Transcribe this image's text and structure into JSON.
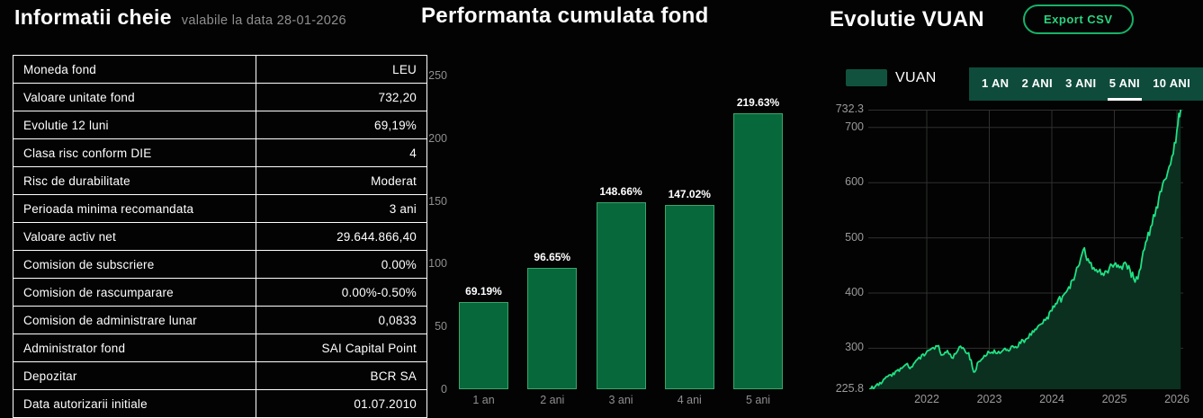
{
  "key_info": {
    "title": "Informatii cheie",
    "subtitle": "valabile la data 28-01-2026",
    "rows": [
      {
        "label": "Moneda fond",
        "value": "LEU"
      },
      {
        "label": "Valoare unitate fond",
        "value": "732,20"
      },
      {
        "label": "Evolutie 12 luni",
        "value": "69,19%"
      },
      {
        "label": "Clasa risc conform DIE",
        "value": "4"
      },
      {
        "label": "Risc de durabilitate",
        "value": "Moderat"
      },
      {
        "label": "Perioada minima recomandata",
        "value": "3 ani"
      },
      {
        "label": "Valoare activ net",
        "value": "29.644.866,40"
      },
      {
        "label": "Comision de subscriere",
        "value": "0.00%"
      },
      {
        "label": "Comision de rascumparare",
        "value": "0.00%-0.50%"
      },
      {
        "label": "Comision de administrare lunar",
        "value": "0,0833"
      },
      {
        "label": "Administrator fond",
        "value": "SAI Capital Point"
      },
      {
        "label": "Depozitar",
        "value": "BCR SA"
      },
      {
        "label": "Data autorizarii initiale",
        "value": "01.07.2010"
      }
    ]
  },
  "chart_data": [
    {
      "type": "bar",
      "title": "Performanta cumulata fond",
      "categories": [
        "1 an",
        "2 ani",
        "3 ani",
        "4 ani",
        "5 ani"
      ],
      "values": [
        69.19,
        96.65,
        148.66,
        147.02,
        219.63
      ],
      "value_labels": [
        "69.19%",
        "96.65%",
        "148.66%",
        "147.02%",
        "219.63%"
      ],
      "ylim": [
        0,
        250
      ],
      "yticks": [
        0,
        50,
        100,
        150,
        200,
        250
      ],
      "bar_color": "#07693b",
      "bar_border": "#3ba46c",
      "grid": false,
      "legend": "none"
    },
    {
      "type": "area",
      "title": "Evolutie VUAN",
      "export_label": "Export CSV",
      "legend": [
        {
          "label": "VUAN",
          "color": "#11523e"
        }
      ],
      "range_tabs": [
        {
          "label": "1 AN",
          "active": false
        },
        {
          "label": "2 ANI",
          "active": false
        },
        {
          "label": "3 ANI",
          "active": false
        },
        {
          "label": "5 ANI",
          "active": true
        },
        {
          "label": "10 ANI",
          "active": false
        }
      ],
      "ylim": [
        225.8,
        732.3
      ],
      "yticks": [
        732.3,
        700,
        600,
        500,
        400,
        300,
        225.8
      ],
      "grid_y": [
        732.3,
        700,
        600,
        500,
        400,
        300
      ],
      "xticks": [
        2022,
        2023,
        2024,
        2025,
        2026
      ],
      "xlim": [
        2021.065,
        2026.1
      ],
      "line_color": "#20e184",
      "fill_color": "#0b3020",
      "grid_color": "rgba(255,255,255,0.18)",
      "series": [
        {
          "name": "VUAN",
          "points": [
            [
              2021.08,
              226
            ],
            [
              2021.17,
              230
            ],
            [
              2021.25,
              238
            ],
            [
              2021.33,
              245
            ],
            [
              2021.42,
              252
            ],
            [
              2021.5,
              258
            ],
            [
              2021.58,
              264
            ],
            [
              2021.67,
              271
            ],
            [
              2021.75,
              266
            ],
            [
              2021.83,
              278
            ],
            [
              2021.92,
              288
            ],
            [
              2022.0,
              294
            ],
            [
              2022.08,
              300
            ],
            [
              2022.17,
              304
            ],
            [
              2022.25,
              288
            ],
            [
              2022.33,
              296
            ],
            [
              2022.42,
              282
            ],
            [
              2022.5,
              297
            ],
            [
              2022.58,
              301
            ],
            [
              2022.67,
              292
            ],
            [
              2022.75,
              257
            ],
            [
              2022.83,
              276
            ],
            [
              2022.92,
              287
            ],
            [
              2023.0,
              292
            ],
            [
              2023.08,
              297
            ],
            [
              2023.17,
              291
            ],
            [
              2023.25,
              300
            ],
            [
              2023.33,
              297
            ],
            [
              2023.42,
              303
            ],
            [
              2023.5,
              309
            ],
            [
              2023.58,
              316
            ],
            [
              2023.67,
              324
            ],
            [
              2023.75,
              334
            ],
            [
              2023.83,
              344
            ],
            [
              2023.92,
              356
            ],
            [
              2024.0,
              368
            ],
            [
              2024.08,
              381
            ],
            [
              2024.17,
              394
            ],
            [
              2024.25,
              406
            ],
            [
              2024.33,
              424
            ],
            [
              2024.42,
              448
            ],
            [
              2024.5,
              478
            ],
            [
              2024.58,
              462
            ],
            [
              2024.67,
              446
            ],
            [
              2024.75,
              440
            ],
            [
              2024.83,
              432
            ],
            [
              2024.92,
              446
            ],
            [
              2025.0,
              452
            ],
            [
              2025.08,
              446
            ],
            [
              2025.17,
              456
            ],
            [
              2025.25,
              442
            ],
            [
              2025.33,
              420
            ],
            [
              2025.42,
              445
            ],
            [
              2025.5,
              492
            ],
            [
              2025.58,
              520
            ],
            [
              2025.67,
              556
            ],
            [
              2025.75,
              584
            ],
            [
              2025.83,
              608
            ],
            [
              2025.92,
              648
            ],
            [
              2026.0,
              695
            ],
            [
              2026.06,
              732.3
            ]
          ]
        }
      ]
    }
  ]
}
